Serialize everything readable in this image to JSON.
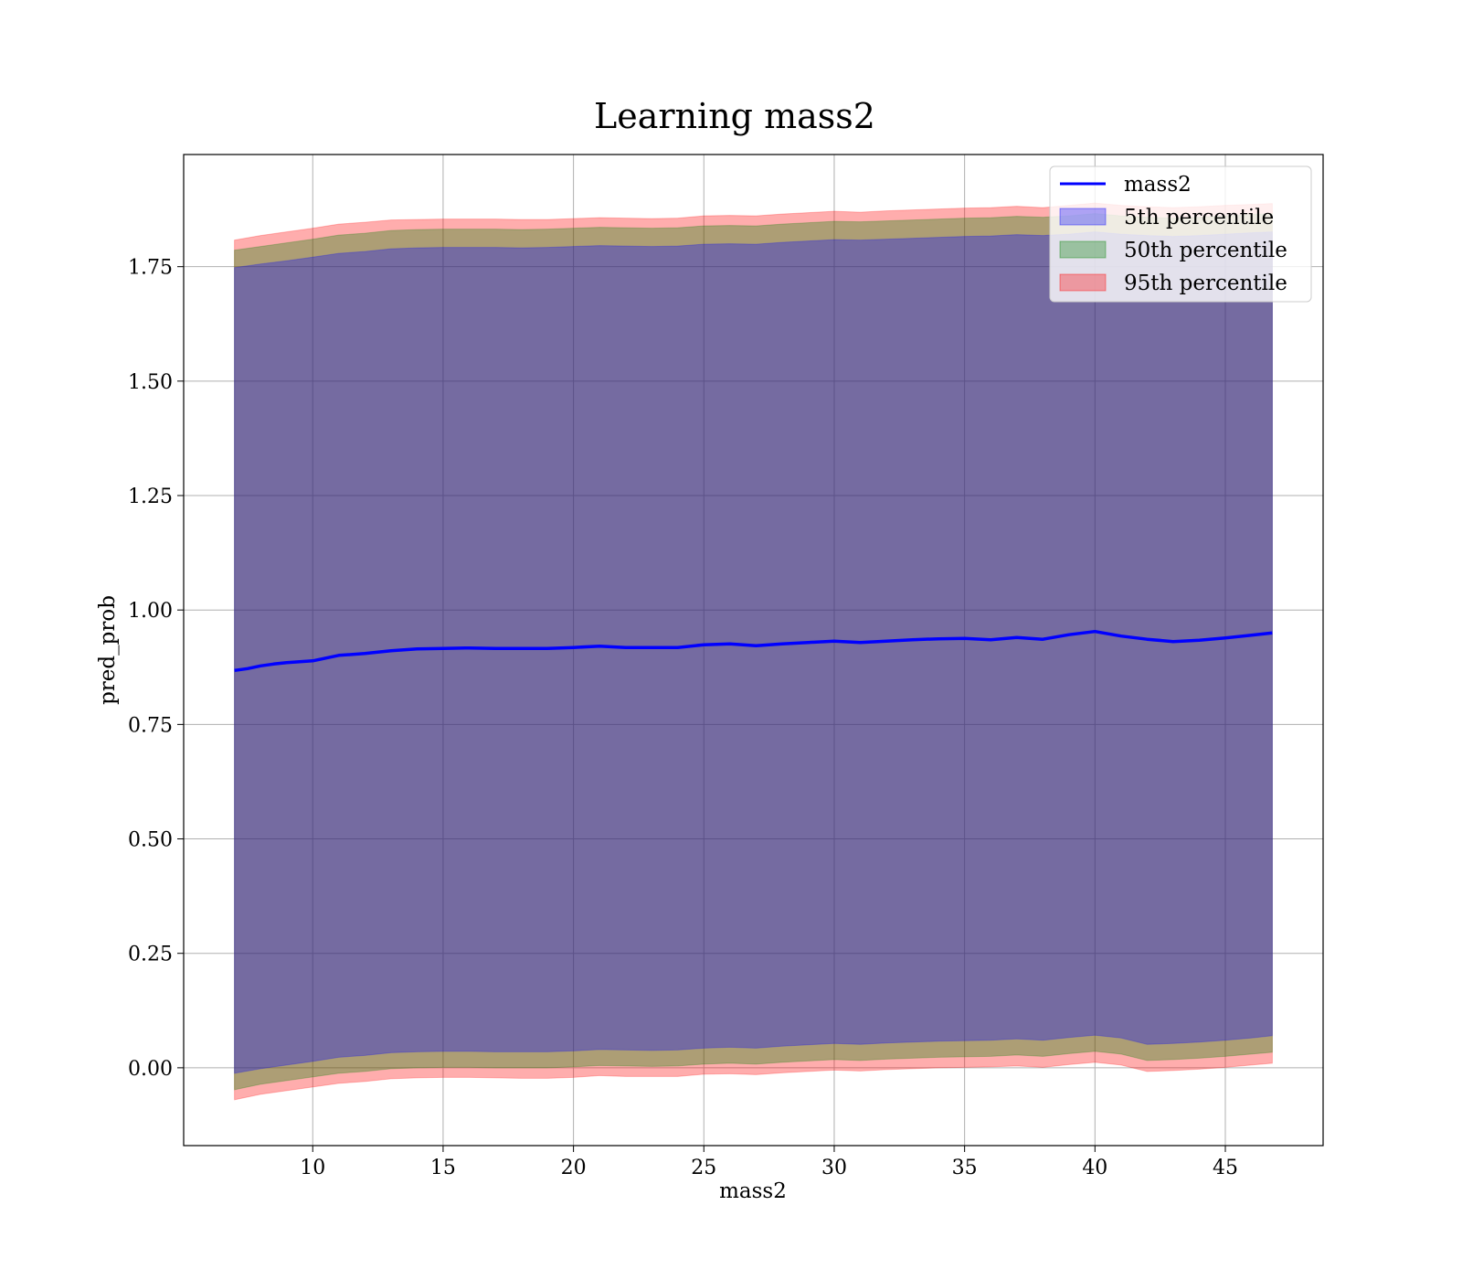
{
  "chart_data": {
    "type": "area",
    "title": "Learning mass2",
    "xlabel": "mass2",
    "ylabel": "pred_prob",
    "xlim": [
      5.05,
      48.75
    ],
    "ylim": [
      -0.17,
      1.995
    ],
    "xticks": [
      10,
      15,
      20,
      25,
      30,
      35,
      40,
      45
    ],
    "yticks": [
      0.0,
      0.25,
      0.5,
      0.75,
      1.0,
      1.25,
      1.5,
      1.75
    ],
    "ytick_labels": [
      "0.00",
      "0.25",
      "0.50",
      "0.75",
      "1.00",
      "1.25",
      "1.50",
      "1.75"
    ],
    "grid": true,
    "legend_position": "top-right",
    "legend": [
      "mass2",
      "5th percentile",
      "50th percentile",
      "95th percentile"
    ],
    "line": {
      "name": "mass2",
      "color": "#0000ff",
      "x": [
        7,
        7.5,
        8,
        8.5,
        9,
        9.5,
        10,
        10.5,
        11,
        12,
        13,
        14,
        15,
        16,
        17,
        18,
        19,
        20,
        21,
        22,
        23,
        24,
        25,
        26,
        27,
        28,
        29,
        30,
        31,
        32,
        33,
        34,
        35,
        36,
        37,
        38,
        39,
        40,
        41,
        42,
        43,
        44,
        45,
        46,
        46.8
      ],
      "y": [
        0.868,
        0.872,
        0.878,
        0.882,
        0.885,
        0.887,
        0.889,
        0.895,
        0.901,
        0.905,
        0.911,
        0.915,
        0.916,
        0.917,
        0.916,
        0.916,
        0.916,
        0.918,
        0.921,
        0.918,
        0.918,
        0.918,
        0.924,
        0.926,
        0.922,
        0.926,
        0.929,
        0.932,
        0.929,
        0.932,
        0.935,
        0.937,
        0.938,
        0.935,
        0.94,
        0.936,
        0.946,
        0.953,
        0.943,
        0.936,
        0.931,
        0.934,
        0.939,
        0.945,
        0.95
      ]
    },
    "bands": [
      {
        "name": "95th percentile",
        "color": "#ff0000",
        "opacity": 0.32,
        "x": [
          7,
          8,
          9,
          10,
          11,
          12,
          13,
          14,
          15,
          16,
          17,
          18,
          19,
          20,
          21,
          22,
          23,
          24,
          25,
          26,
          27,
          28,
          29,
          30,
          31,
          32,
          33,
          34,
          35,
          36,
          37,
          38,
          39,
          40,
          41,
          42,
          43,
          44,
          45,
          46,
          46.8
        ],
        "upper": [
          1.808,
          1.818,
          1.826,
          1.834,
          1.843,
          1.847,
          1.852,
          1.853,
          1.854,
          1.854,
          1.854,
          1.853,
          1.853,
          1.855,
          1.857,
          1.856,
          1.855,
          1.856,
          1.861,
          1.862,
          1.861,
          1.865,
          1.868,
          1.871,
          1.869,
          1.872,
          1.874,
          1.876,
          1.878,
          1.879,
          1.882,
          1.879,
          1.884,
          1.889,
          1.884,
          1.881,
          1.879,
          1.881,
          1.884,
          1.886,
          1.888
        ],
        "lower": [
          -0.07,
          -0.058,
          -0.05,
          -0.042,
          -0.034,
          -0.03,
          -0.024,
          -0.022,
          -0.021,
          -0.021,
          -0.022,
          -0.023,
          -0.023,
          -0.021,
          -0.017,
          -0.019,
          -0.019,
          -0.019,
          -0.014,
          -0.013,
          -0.015,
          -0.011,
          -0.008,
          -0.005,
          -0.007,
          -0.004,
          -0.002,
          0.0,
          0.001,
          0.002,
          0.004,
          0.001,
          0.007,
          0.012,
          0.006,
          -0.008,
          -0.006,
          -0.003,
          0.001,
          0.006,
          0.01
        ]
      },
      {
        "name": "50th percentile",
        "color": "#008000",
        "opacity": 0.32,
        "x": [
          7,
          8,
          9,
          10,
          11,
          12,
          13,
          14,
          15,
          16,
          17,
          18,
          19,
          20,
          21,
          22,
          23,
          24,
          25,
          26,
          27,
          28,
          29,
          30,
          31,
          32,
          33,
          34,
          35,
          36,
          37,
          38,
          39,
          40,
          41,
          42,
          43,
          44,
          45,
          46,
          46.8
        ],
        "upper": [
          1.786,
          1.794,
          1.802,
          1.81,
          1.819,
          1.823,
          1.829,
          1.831,
          1.832,
          1.832,
          1.832,
          1.831,
          1.832,
          1.834,
          1.836,
          1.835,
          1.834,
          1.835,
          1.839,
          1.84,
          1.839,
          1.843,
          1.846,
          1.849,
          1.848,
          1.85,
          1.852,
          1.854,
          1.856,
          1.857,
          1.86,
          1.858,
          1.861,
          1.866,
          1.861,
          1.858,
          1.856,
          1.858,
          1.861,
          1.864,
          1.866
        ],
        "lower": [
          -0.048,
          -0.036,
          -0.028,
          -0.02,
          -0.012,
          -0.008,
          -0.002,
          0.0,
          0.001,
          0.001,
          0.0,
          0.0,
          0.0,
          0.002,
          0.005,
          0.004,
          0.003,
          0.004,
          0.008,
          0.01,
          0.008,
          0.012,
          0.015,
          0.018,
          0.016,
          0.019,
          0.021,
          0.023,
          0.024,
          0.025,
          0.028,
          0.025,
          0.031,
          0.036,
          0.03,
          0.016,
          0.018,
          0.021,
          0.025,
          0.03,
          0.034
        ]
      },
      {
        "name": "5th percentile",
        "color": "#0000ff",
        "opacity": 0.32,
        "x": [
          7,
          8,
          9,
          10,
          11,
          12,
          13,
          14,
          15,
          16,
          17,
          18,
          19,
          20,
          21,
          22,
          23,
          24,
          25,
          26,
          27,
          28,
          29,
          30,
          31,
          32,
          33,
          34,
          35,
          36,
          37,
          38,
          39,
          40,
          41,
          42,
          43,
          44,
          45,
          46,
          46.8
        ],
        "upper": [
          1.748,
          1.756,
          1.763,
          1.771,
          1.779,
          1.783,
          1.789,
          1.791,
          1.792,
          1.792,
          1.792,
          1.791,
          1.792,
          1.794,
          1.796,
          1.795,
          1.794,
          1.795,
          1.799,
          1.8,
          1.799,
          1.803,
          1.806,
          1.809,
          1.808,
          1.81,
          1.812,
          1.814,
          1.816,
          1.817,
          1.82,
          1.818,
          1.821,
          1.826,
          1.821,
          1.818,
          1.816,
          1.818,
          1.821,
          1.824,
          1.826
        ],
        "lower": [
          -0.012,
          -0.002,
          0.006,
          0.014,
          0.023,
          0.027,
          0.033,
          0.035,
          0.036,
          0.036,
          0.035,
          0.035,
          0.035,
          0.037,
          0.04,
          0.039,
          0.038,
          0.039,
          0.043,
          0.045,
          0.043,
          0.047,
          0.05,
          0.053,
          0.051,
          0.054,
          0.056,
          0.058,
          0.059,
          0.06,
          0.063,
          0.06,
          0.066,
          0.071,
          0.065,
          0.051,
          0.053,
          0.056,
          0.06,
          0.065,
          0.07
        ]
      }
    ]
  }
}
